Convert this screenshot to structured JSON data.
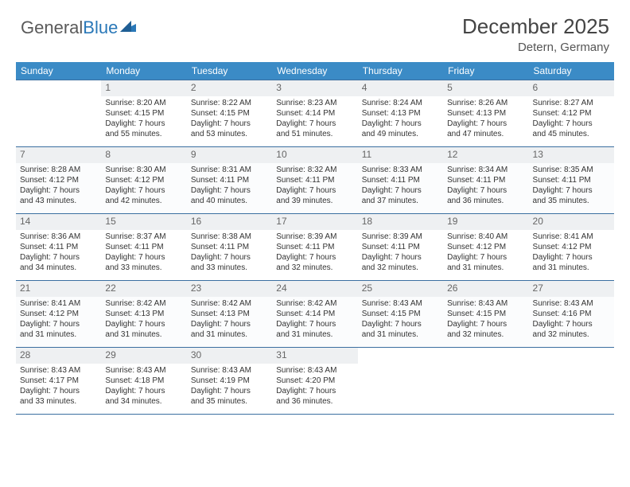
{
  "brand": {
    "part1": "General",
    "part2": "Blue"
  },
  "title": "December 2025",
  "location": "Detern, Germany",
  "colors": {
    "header_bg": "#3b8bc6",
    "header_text": "#ffffff",
    "grid_line": "#3b6fa0",
    "daynum_bg": "#eef0f2",
    "text": "#333333",
    "brand_gray": "#5a5a5a",
    "brand_blue": "#2a78b8"
  },
  "weekdays": [
    "Sunday",
    "Monday",
    "Tuesday",
    "Wednesday",
    "Thursday",
    "Friday",
    "Saturday"
  ],
  "weeks": [
    [
      {
        "day": "",
        "lines": [
          "",
          "",
          "",
          ""
        ]
      },
      {
        "day": "1",
        "lines": [
          "Sunrise: 8:20 AM",
          "Sunset: 4:15 PM",
          "Daylight: 7 hours",
          "and 55 minutes."
        ]
      },
      {
        "day": "2",
        "lines": [
          "Sunrise: 8:22 AM",
          "Sunset: 4:15 PM",
          "Daylight: 7 hours",
          "and 53 minutes."
        ]
      },
      {
        "day": "3",
        "lines": [
          "Sunrise: 8:23 AM",
          "Sunset: 4:14 PM",
          "Daylight: 7 hours",
          "and 51 minutes."
        ]
      },
      {
        "day": "4",
        "lines": [
          "Sunrise: 8:24 AM",
          "Sunset: 4:13 PM",
          "Daylight: 7 hours",
          "and 49 minutes."
        ]
      },
      {
        "day": "5",
        "lines": [
          "Sunrise: 8:26 AM",
          "Sunset: 4:13 PM",
          "Daylight: 7 hours",
          "and 47 minutes."
        ]
      },
      {
        "day": "6",
        "lines": [
          "Sunrise: 8:27 AM",
          "Sunset: 4:12 PM",
          "Daylight: 7 hours",
          "and 45 minutes."
        ]
      }
    ],
    [
      {
        "day": "7",
        "lines": [
          "Sunrise: 8:28 AM",
          "Sunset: 4:12 PM",
          "Daylight: 7 hours",
          "and 43 minutes."
        ]
      },
      {
        "day": "8",
        "lines": [
          "Sunrise: 8:30 AM",
          "Sunset: 4:12 PM",
          "Daylight: 7 hours",
          "and 42 minutes."
        ]
      },
      {
        "day": "9",
        "lines": [
          "Sunrise: 8:31 AM",
          "Sunset: 4:11 PM",
          "Daylight: 7 hours",
          "and 40 minutes."
        ]
      },
      {
        "day": "10",
        "lines": [
          "Sunrise: 8:32 AM",
          "Sunset: 4:11 PM",
          "Daylight: 7 hours",
          "and 39 minutes."
        ]
      },
      {
        "day": "11",
        "lines": [
          "Sunrise: 8:33 AM",
          "Sunset: 4:11 PM",
          "Daylight: 7 hours",
          "and 37 minutes."
        ]
      },
      {
        "day": "12",
        "lines": [
          "Sunrise: 8:34 AM",
          "Sunset: 4:11 PM",
          "Daylight: 7 hours",
          "and 36 minutes."
        ]
      },
      {
        "day": "13",
        "lines": [
          "Sunrise: 8:35 AM",
          "Sunset: 4:11 PM",
          "Daylight: 7 hours",
          "and 35 minutes."
        ]
      }
    ],
    [
      {
        "day": "14",
        "lines": [
          "Sunrise: 8:36 AM",
          "Sunset: 4:11 PM",
          "Daylight: 7 hours",
          "and 34 minutes."
        ]
      },
      {
        "day": "15",
        "lines": [
          "Sunrise: 8:37 AM",
          "Sunset: 4:11 PM",
          "Daylight: 7 hours",
          "and 33 minutes."
        ]
      },
      {
        "day": "16",
        "lines": [
          "Sunrise: 8:38 AM",
          "Sunset: 4:11 PM",
          "Daylight: 7 hours",
          "and 33 minutes."
        ]
      },
      {
        "day": "17",
        "lines": [
          "Sunrise: 8:39 AM",
          "Sunset: 4:11 PM",
          "Daylight: 7 hours",
          "and 32 minutes."
        ]
      },
      {
        "day": "18",
        "lines": [
          "Sunrise: 8:39 AM",
          "Sunset: 4:11 PM",
          "Daylight: 7 hours",
          "and 32 minutes."
        ]
      },
      {
        "day": "19",
        "lines": [
          "Sunrise: 8:40 AM",
          "Sunset: 4:12 PM",
          "Daylight: 7 hours",
          "and 31 minutes."
        ]
      },
      {
        "day": "20",
        "lines": [
          "Sunrise: 8:41 AM",
          "Sunset: 4:12 PM",
          "Daylight: 7 hours",
          "and 31 minutes."
        ]
      }
    ],
    [
      {
        "day": "21",
        "lines": [
          "Sunrise: 8:41 AM",
          "Sunset: 4:12 PM",
          "Daylight: 7 hours",
          "and 31 minutes."
        ]
      },
      {
        "day": "22",
        "lines": [
          "Sunrise: 8:42 AM",
          "Sunset: 4:13 PM",
          "Daylight: 7 hours",
          "and 31 minutes."
        ]
      },
      {
        "day": "23",
        "lines": [
          "Sunrise: 8:42 AM",
          "Sunset: 4:13 PM",
          "Daylight: 7 hours",
          "and 31 minutes."
        ]
      },
      {
        "day": "24",
        "lines": [
          "Sunrise: 8:42 AM",
          "Sunset: 4:14 PM",
          "Daylight: 7 hours",
          "and 31 minutes."
        ]
      },
      {
        "day": "25",
        "lines": [
          "Sunrise: 8:43 AM",
          "Sunset: 4:15 PM",
          "Daylight: 7 hours",
          "and 31 minutes."
        ]
      },
      {
        "day": "26",
        "lines": [
          "Sunrise: 8:43 AM",
          "Sunset: 4:15 PM",
          "Daylight: 7 hours",
          "and 32 minutes."
        ]
      },
      {
        "day": "27",
        "lines": [
          "Sunrise: 8:43 AM",
          "Sunset: 4:16 PM",
          "Daylight: 7 hours",
          "and 32 minutes."
        ]
      }
    ],
    [
      {
        "day": "28",
        "lines": [
          "Sunrise: 8:43 AM",
          "Sunset: 4:17 PM",
          "Daylight: 7 hours",
          "and 33 minutes."
        ]
      },
      {
        "day": "29",
        "lines": [
          "Sunrise: 8:43 AM",
          "Sunset: 4:18 PM",
          "Daylight: 7 hours",
          "and 34 minutes."
        ]
      },
      {
        "day": "30",
        "lines": [
          "Sunrise: 8:43 AM",
          "Sunset: 4:19 PM",
          "Daylight: 7 hours",
          "and 35 minutes."
        ]
      },
      {
        "day": "31",
        "lines": [
          "Sunrise: 8:43 AM",
          "Sunset: 4:20 PM",
          "Daylight: 7 hours",
          "and 36 minutes."
        ]
      },
      {
        "day": "",
        "lines": [
          "",
          "",
          "",
          ""
        ]
      },
      {
        "day": "",
        "lines": [
          "",
          "",
          "",
          ""
        ]
      },
      {
        "day": "",
        "lines": [
          "",
          "",
          "",
          ""
        ]
      }
    ]
  ]
}
